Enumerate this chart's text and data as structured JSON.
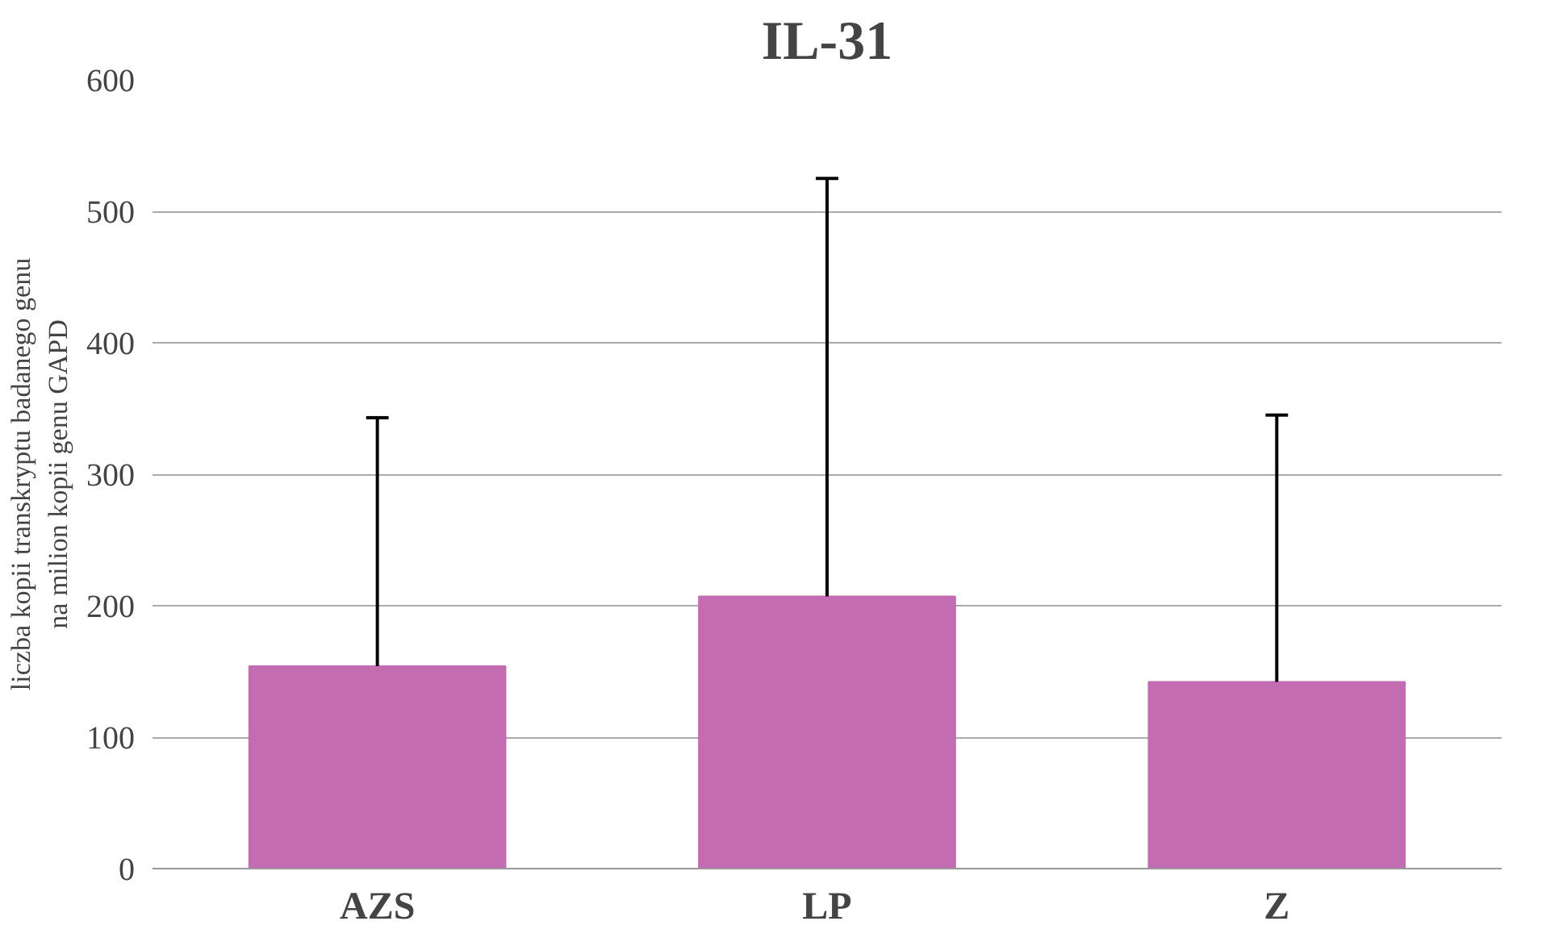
{
  "chart_data": {
    "type": "bar",
    "title": "IL-31",
    "ylabel": "liczba kopii transkryptu badanego genu\nna milion kopii genu GAPD",
    "categories": [
      "AZS",
      "LP",
      "Z"
    ],
    "values": [
      154,
      207,
      142
    ],
    "errors": [
      [
        154,
        343
      ],
      [
        207,
        525
      ],
      [
        142,
        345
      ]
    ],
    "color": "#c46cb2",
    "ylim": [
      0,
      600
    ],
    "yticks": [
      0,
      100,
      200,
      300,
      400,
      500,
      600
    ],
    "grid": "y"
  }
}
